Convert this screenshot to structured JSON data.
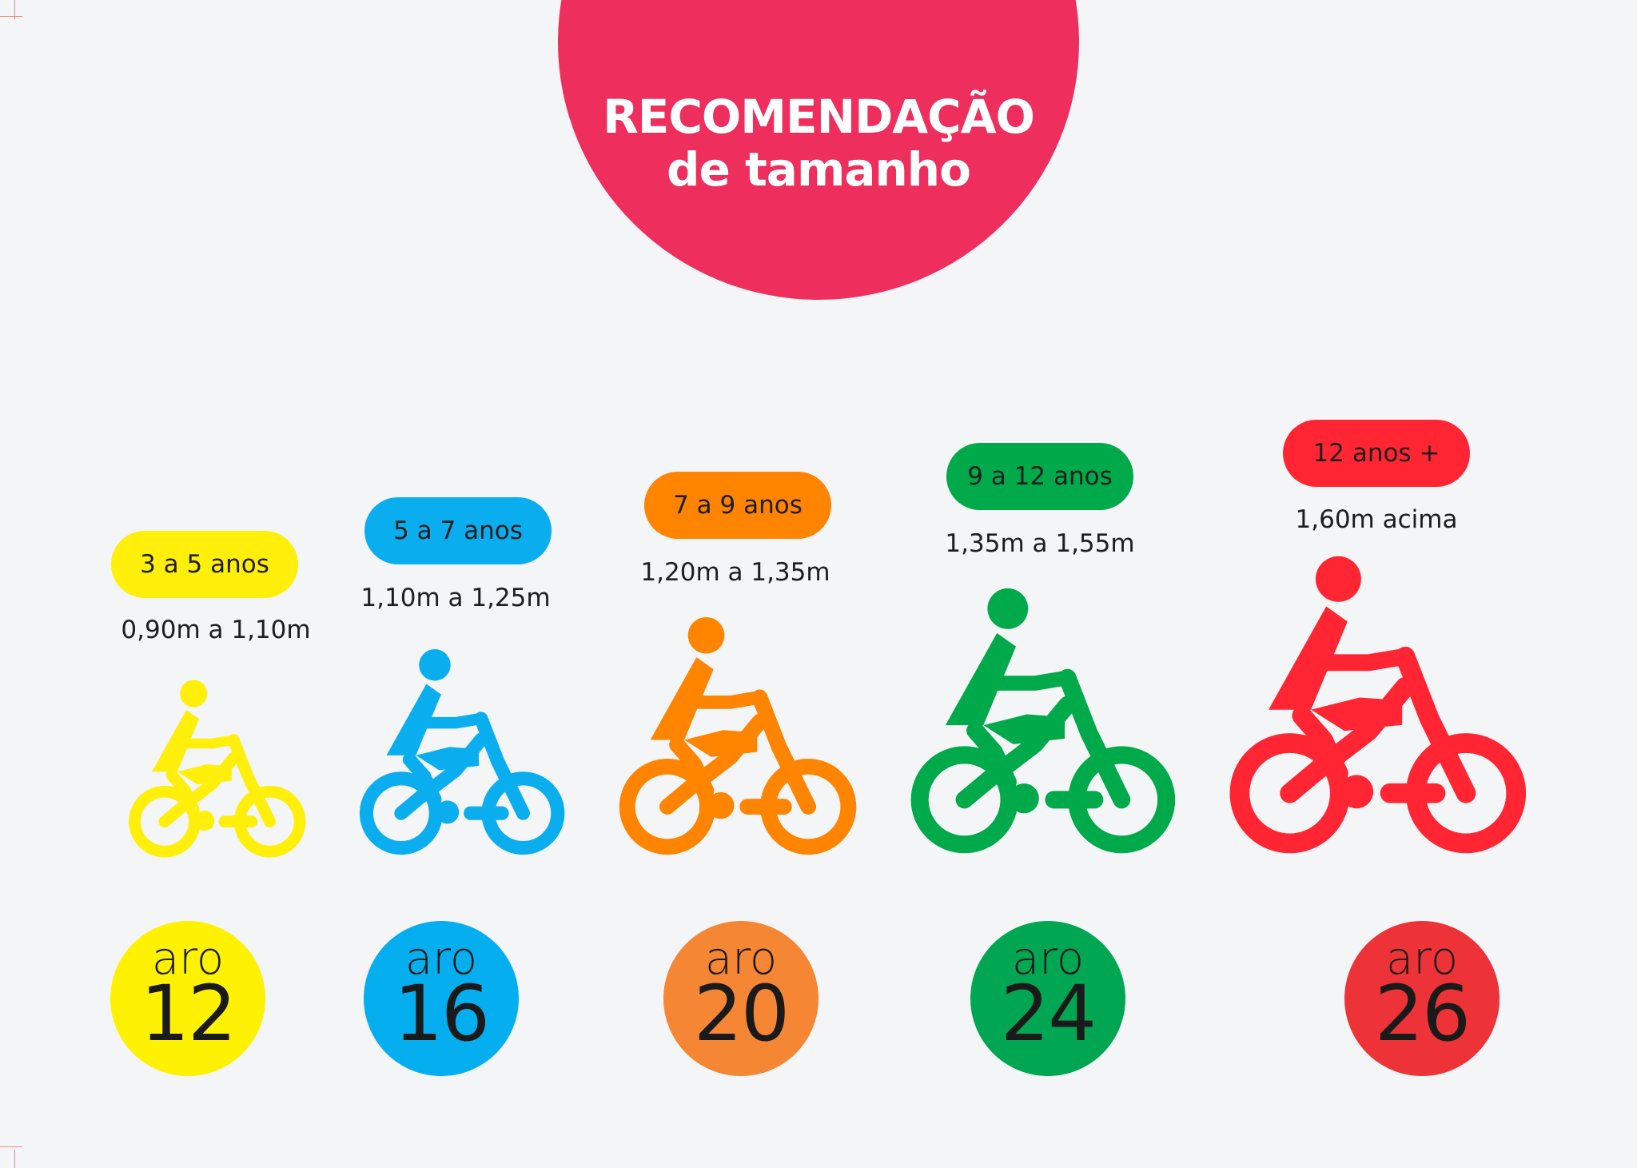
{
  "title": {
    "line1": "RECOMENDAÇÃO",
    "line2": "de tamanho",
    "color": "#ee2e5d"
  },
  "sizes": [
    {
      "age": "3 a 5 anos",
      "height": "0,90m a 1,10m",
      "word": "aro",
      "rim": "12",
      "color": "#ffef0a",
      "circle_color": "#fef102",
      "icon": "child-bike-icon"
    },
    {
      "age": "5 a 7 anos",
      "height": "1,10m a 1,25m",
      "word": "aro",
      "rim": "16",
      "color": "#0aaeef",
      "circle_color": "#05aeef",
      "icon": "child-bike-icon"
    },
    {
      "age": "7 a 9 anos",
      "height": "1,20m a 1,35m",
      "word": "aro",
      "rim": "20",
      "color": "#ff8400",
      "circle_color": "#f58634",
      "icon": "child-bike-icon"
    },
    {
      "age": "9 a 12 anos",
      "height": "1,35m a 1,55m",
      "word": "aro",
      "rim": "24",
      "color": "#00a94a",
      "circle_color": "#00a651",
      "icon": "child-bike-icon"
    },
    {
      "age": "12 anos +",
      "height": "1,60m acima",
      "word": "aro",
      "rim": "26",
      "color": "#ff2533",
      "circle_color": "#ee3338",
      "icon": "adult-bike-icon"
    }
  ]
}
